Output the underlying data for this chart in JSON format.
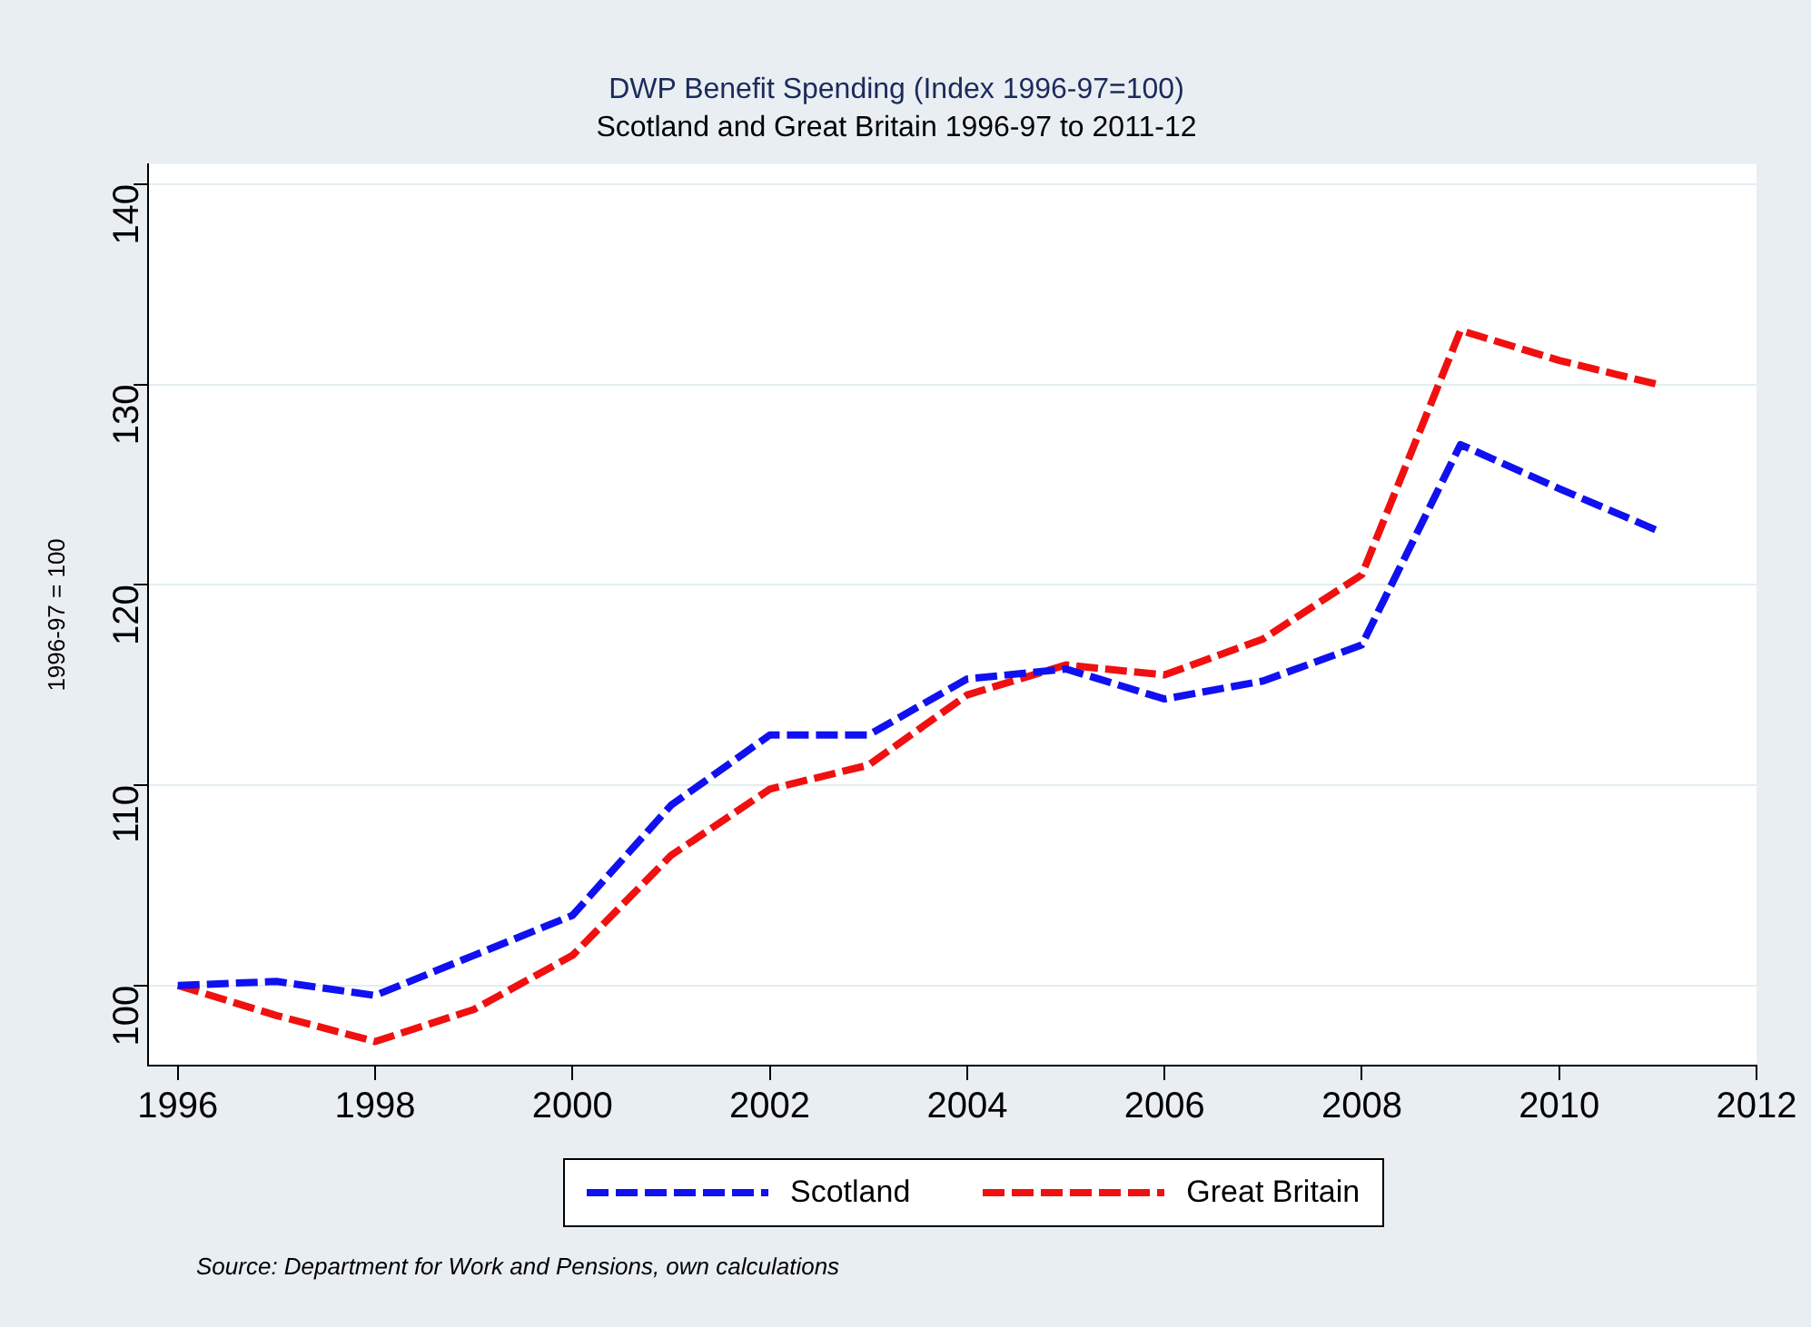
{
  "chart_data": {
    "type": "line",
    "title": "DWP Benefit Spending (Index 1996-97=100)",
    "subtitle": "Scotland and Great Britain 1996-97 to 2011-12",
    "ylabel": "1996-97 = 100",
    "x": [
      1996,
      1997,
      1998,
      1999,
      2000,
      2001,
      2002,
      2003,
      2004,
      2005,
      2006,
      2007,
      2008,
      2009,
      2010,
      2011
    ],
    "series": [
      {
        "name": "Scotland",
        "color": "#1010f0",
        "values": [
          100,
          100.2,
          99.5,
          101.5,
          103.5,
          109,
          112.5,
          112.5,
          115.3,
          115.8,
          114.3,
          115.2,
          117,
          127,
          124.8,
          122.7
        ]
      },
      {
        "name": "Great Britain",
        "color": "#f01010",
        "values": [
          100,
          98.5,
          97.2,
          98.8,
          101.5,
          106.5,
          109.8,
          111,
          114.5,
          116,
          115.5,
          117.3,
          120.5,
          132.7,
          131.2,
          130
        ]
      }
    ],
    "xlim": [
      1995.7,
      2012
    ],
    "xticks": [
      1996,
      1998,
      2000,
      2002,
      2004,
      2006,
      2008,
      2010,
      2012
    ],
    "ylim": [
      96,
      141
    ],
    "yticks": [
      100,
      110,
      120,
      130,
      140
    ],
    "grid": "y",
    "legend": "bottom",
    "line_style": "dashed",
    "marker": "none",
    "annotations": [
      "Source: Department for Work and Pensions, own calculations"
    ]
  }
}
